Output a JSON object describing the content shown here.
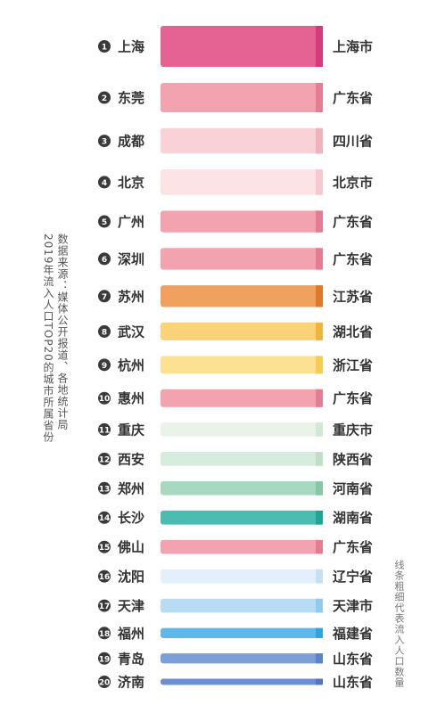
{
  "chart_data": {
    "type": "bar",
    "ranks": [
      "1",
      "2",
      "3",
      "4",
      "5",
      "6",
      "7",
      "8",
      "9",
      "10",
      "11",
      "12",
      "13",
      "14",
      "15",
      "16",
      "17",
      "18",
      "19",
      "20"
    ],
    "categories": [
      "上海",
      "东莞",
      "成都",
      "北京",
      "广州",
      "深圳",
      "苏州",
      "武汉",
      "杭州",
      "惠州",
      "重庆",
      "西安",
      "郑州",
      "长沙",
      "佛山",
      "沈阳",
      "天津",
      "福州",
      "青岛",
      "济南"
    ],
    "provinces": [
      "上海市",
      "广东省",
      "四川省",
      "北京市",
      "广东省",
      "广东省",
      "江苏省",
      "湖北省",
      "浙江省",
      "广东省",
      "重庆市",
      "陕西省",
      "河南省",
      "湖南省",
      "广东省",
      "辽宁省",
      "天津市",
      "福建省",
      "山东省",
      "山东省"
    ],
    "values": [
      10,
      7,
      6,
      6,
      5,
      5,
      5,
      4,
      4,
      4,
      3,
      3,
      3,
      3,
      3,
      3,
      3,
      2,
      2,
      1
    ],
    "colors": [
      "#e46393",
      "#f3a3b0",
      "#f9d2d7",
      "#fbe3e6",
      "#f3a3b0",
      "#f3a3b0",
      "#f0a15f",
      "#f9d27a",
      "#fbe191",
      "#f3a3b0",
      "#e9f3e9",
      "#d7ecdd",
      "#a8d8c1",
      "#4bbdb0",
      "#f3a3b0",
      "#e3f0fb",
      "#b9dcf5",
      "#5eb9ea",
      "#7b9fd6",
      "#6b8fd0"
    ],
    "accent_colors": [
      "#d63a7a",
      "#e57d92",
      "#f0b3bd",
      "#f5c9cf",
      "#e57d92",
      "#e57d92",
      "#e0782a",
      "#f0b540",
      "#f5cc55",
      "#e57d92",
      "#d3e8d3",
      "#bfe0c8",
      "#86c7a5",
      "#1fa596",
      "#e57d92",
      "#c5e0f5",
      "#93c8ef",
      "#2ea5e0",
      "#5a84c8",
      "#4f76bf"
    ]
  },
  "notes": {
    "source": "数据来源：媒体公开报道、各地统计局",
    "title": "2019年流入人口TOP20的城市所属省份",
    "legend": "线条粗细代表流入人口数量"
  }
}
